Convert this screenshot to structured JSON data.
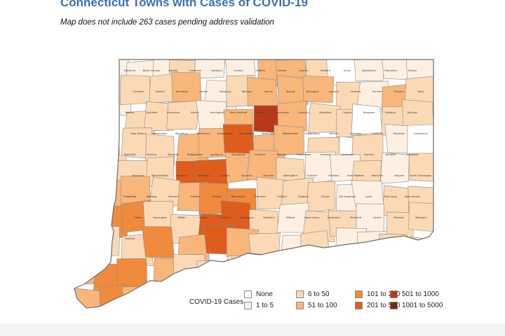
{
  "header": {
    "title": "Connecticut Towns with Cases of COVID-19",
    "subtitle": "Map does not include 263 cases pending address validation"
  },
  "legend": {
    "title": "COVID-19 Cases",
    "items": [
      {
        "label": "None",
        "color": "#ffffff"
      },
      {
        "label": "1 to 5",
        "color": "#fdf0e2"
      },
      {
        "label": "6 to 50",
        "color": "#fbd9b5"
      },
      {
        "label": "51 to 100",
        "color": "#f8b67a"
      },
      {
        "label": "101 to 200",
        "color": "#f08a3c"
      },
      {
        "label": "201 to 500",
        "color": "#de5d1c"
      },
      {
        "label": "501 to 1000",
        "color": "#b8391a"
      },
      {
        "label": "1001 to 5000",
        "color": "#7b2613"
      }
    ]
  },
  "map": {
    "state": "Connecticut",
    "border_color": "#6d6d6d",
    "town_labels": [
      "Salisbury",
      "North Canaan",
      "Norfolk",
      "Colebrook",
      "Hartland",
      "Granby",
      "Suffield",
      "Enfield",
      "Somers",
      "Stafford",
      "Union",
      "Woodstock",
      "Thompson",
      "Sharon",
      "Cornwall",
      "Goshen",
      "Torrington",
      "Canton",
      "Simsbury",
      "Windsor",
      "Vernon",
      "Tolland",
      "Willington",
      "Ashford",
      "Eastford",
      "Pomfret",
      "Putnam",
      "Kent",
      "Warren",
      "Litchfield",
      "Harwinton",
      "Bristol",
      "Farmington",
      "West Hartford",
      "Hartford",
      "Manchester",
      "Coventry",
      "Mansfield",
      "Chaplin",
      "Hampton",
      "Brooklyn",
      "Killingly",
      "New Milford",
      "Washington",
      "Woodbury",
      "Waterbury",
      "Southington",
      "New Britain",
      "Newington",
      "Wethersfield",
      "Glastonbury",
      "Hebron",
      "Columbia",
      "Lebanon",
      "Windham",
      "Canterbury",
      "Plainfield",
      "Sterling",
      "Sherman",
      "Bridgewater",
      "Southbury",
      "Naugatuck",
      "Cheshire",
      "Meriden",
      "Middletown",
      "Portland",
      "Colchester",
      "Franklin",
      "Norwich",
      "Griswold",
      "Voluntown",
      "New Fairfield",
      "Danbury",
      "Newtown",
      "Oxford",
      "Seymour",
      "Hamden",
      "Wallingford",
      "Durham",
      "Haddam",
      "East Haddam",
      "Montville",
      "Ledyard",
      "North Stonington",
      "Ridgefield",
      "Redding",
      "Monroe",
      "Shelton",
      "Orange",
      "New Haven",
      "Branford",
      "Guilford",
      "Madison",
      "Clinton",
      "Old Saybrook",
      "Lyme",
      "East Lyme",
      "New London",
      "Groton",
      "Stonington",
      "Wilton",
      "Weston",
      "Trumbull",
      "Bridgeport",
      "Stratford",
      "Milford",
      "West Haven",
      "Greenwich",
      "Stamford",
      "Darien",
      "Norwalk",
      "Westport",
      "Fairfield"
    ]
  }
}
